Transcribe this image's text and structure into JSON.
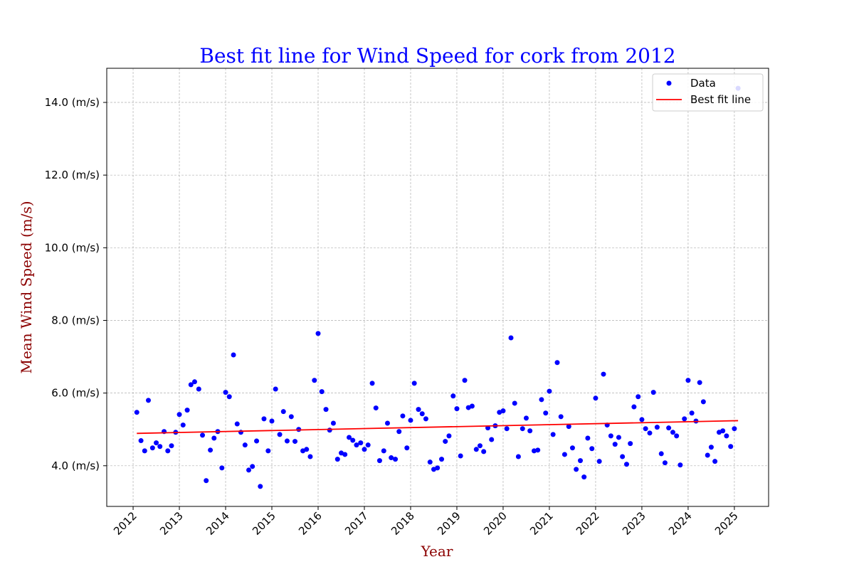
{
  "chart_data": {
    "type": "scatter",
    "title": "Best fit line for Wind Speed for cork from 2012",
    "x_label": "Year",
    "y_label": "Mean Wind Speed (m/s)",
    "xlim": [
      2011.43,
      2025.74
    ],
    "ylim": [
      2.88,
      14.94
    ],
    "xticks": [
      2012,
      2013,
      2014,
      2015,
      2016,
      2017,
      2018,
      2019,
      2020,
      2021,
      2022,
      2023,
      2024,
      2025
    ],
    "yticks": [
      {
        "value": 4,
        "label": "4.0 (m/s)"
      },
      {
        "value": 6,
        "label": "6.0 (m/s)"
      },
      {
        "value": 8,
        "label": "8.0 (m/s)"
      },
      {
        "value": 10,
        "label": "10.0 (m/s)"
      },
      {
        "value": 12,
        "label": "12.0 (m/s)"
      },
      {
        "value": 14,
        "label": "14.0 (m/s)"
      }
    ],
    "grid": true,
    "legend": "upper right",
    "series": [
      {
        "name": "Data",
        "kind": "marker",
        "color": "#0000ff",
        "x": [
          2012.08,
          2012.17,
          2012.25,
          2012.33,
          2012.42,
          2012.5,
          2012.58,
          2012.67,
          2012.75,
          2012.83,
          2012.92,
          2013.0,
          2013.08,
          2013.17,
          2013.25,
          2013.33,
          2013.42,
          2013.5,
          2013.58,
          2013.67,
          2013.75,
          2013.83,
          2013.92,
          2014.0,
          2014.08,
          2014.17,
          2014.25,
          2014.33,
          2014.42,
          2014.5,
          2014.58,
          2014.67,
          2014.75,
          2014.83,
          2014.92,
          2015.0,
          2015.08,
          2015.17,
          2015.25,
          2015.33,
          2015.42,
          2015.5,
          2015.58,
          2015.67,
          2015.75,
          2015.83,
          2015.92,
          2016.0,
          2016.08,
          2016.17,
          2016.25,
          2016.33,
          2016.42,
          2016.5,
          2016.58,
          2016.67,
          2016.75,
          2016.83,
          2016.92,
          2017.0,
          2017.08,
          2017.17,
          2017.25,
          2017.33,
          2017.42,
          2017.5,
          2017.58,
          2017.67,
          2017.75,
          2017.83,
          2017.92,
          2018.0,
          2018.08,
          2018.17,
          2018.25,
          2018.33,
          2018.42,
          2018.5,
          2018.58,
          2018.67,
          2018.75,
          2018.83,
          2018.92,
          2019.0,
          2019.08,
          2019.17,
          2019.25,
          2019.33,
          2019.42,
          2019.5,
          2019.58,
          2019.67,
          2019.75,
          2019.83,
          2019.92,
          2020.0,
          2020.08,
          2020.17,
          2020.25,
          2020.33,
          2020.42,
          2020.5,
          2020.58,
          2020.67,
          2020.75,
          2020.83,
          2020.92,
          2021.0,
          2021.08,
          2021.17,
          2021.25,
          2021.33,
          2021.42,
          2021.5,
          2021.58,
          2021.67,
          2021.75,
          2021.83,
          2021.92,
          2022.0,
          2022.08,
          2022.17,
          2022.25,
          2022.33,
          2022.42,
          2022.5,
          2022.58,
          2022.67,
          2022.75,
          2022.83,
          2022.92,
          2023.0,
          2023.08,
          2023.17,
          2023.25,
          2023.33,
          2023.42,
          2023.5,
          2023.58,
          2023.67,
          2023.75,
          2023.83,
          2023.92,
          2024.0,
          2024.08,
          2024.17,
          2024.25,
          2024.33,
          2024.42,
          2024.5,
          2024.58,
          2024.67,
          2024.75,
          2024.83,
          2024.92,
          2025.0,
          2025.08
        ],
        "values": [
          5.47,
          4.69,
          4.41,
          5.8,
          4.49,
          4.63,
          4.53,
          4.94,
          4.41,
          4.55,
          4.92,
          5.41,
          5.12,
          5.53,
          6.23,
          6.31,
          6.11,
          4.84,
          3.59,
          4.43,
          4.76,
          4.94,
          3.94,
          6.02,
          5.9,
          7.05,
          5.15,
          4.92,
          4.57,
          3.88,
          3.98,
          4.68,
          3.43,
          5.29,
          4.41,
          5.23,
          6.11,
          4.86,
          5.49,
          4.68,
          5.35,
          4.67,
          5.0,
          4.41,
          4.45,
          4.25,
          6.35,
          7.64,
          6.04,
          5.55,
          4.98,
          5.17,
          4.18,
          4.35,
          4.31,
          4.78,
          4.7,
          4.57,
          4.63,
          4.45,
          4.57,
          6.27,
          5.59,
          4.14,
          4.41,
          5.17,
          4.22,
          4.18,
          4.94,
          5.37,
          4.49,
          5.25,
          6.27,
          5.55,
          5.43,
          5.29,
          4.1,
          3.9,
          3.94,
          4.18,
          4.67,
          4.82,
          5.92,
          5.57,
          4.27,
          6.35,
          5.6,
          5.64,
          4.45,
          4.55,
          4.39,
          5.04,
          4.72,
          5.1,
          5.47,
          5.51,
          5.02,
          7.52,
          5.72,
          4.25,
          5.02,
          5.31,
          4.96,
          4.41,
          4.43,
          5.82,
          5.45,
          6.05,
          4.86,
          6.84,
          5.35,
          4.31,
          5.08,
          4.49,
          3.9,
          4.14,
          3.69,
          4.76,
          4.47,
          5.86,
          4.12,
          6.52,
          5.12,
          4.82,
          4.59,
          4.78,
          4.25,
          4.04,
          4.61,
          5.62,
          5.9,
          5.27,
          5.02,
          4.9,
          6.02,
          5.06,
          4.33,
          4.08,
          5.04,
          4.92,
          4.82,
          4.02,
          5.29,
          6.35,
          5.45,
          5.23,
          6.29,
          5.76,
          4.29,
          4.51,
          4.12,
          4.92,
          4.96,
          4.82,
          4.53,
          5.02,
          14.39
        ]
      },
      {
        "name": "Best fit line",
        "kind": "line",
        "color": "#ff0000",
        "x": [
          2012.08,
          2025.08
        ],
        "values": [
          4.89,
          5.24
        ]
      }
    ]
  }
}
